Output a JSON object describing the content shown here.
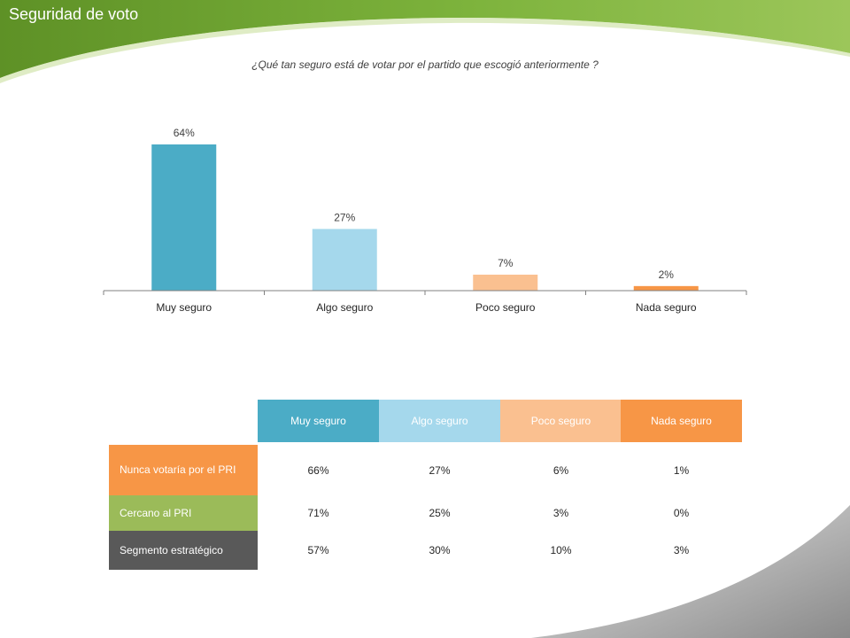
{
  "slide": {
    "title": "Seguridad  de voto",
    "question": "¿Qué tan seguro está de votar por el partido que escogió anteriormente ?"
  },
  "colors": {
    "green_dark": "#6a9a2a",
    "green_light": "#9cc65a",
    "muy_seguro": "#4bacc6",
    "algo_seguro": "#a5d8ec",
    "poco_seguro": "#fac090",
    "nada_seguro": "#f79646",
    "row_orange": "#f79646",
    "row_green": "#9bbb59",
    "row_dark": "#595959"
  },
  "chart_data": {
    "type": "bar",
    "categories": [
      "Muy seguro",
      "Algo seguro",
      "Poco seguro",
      "Nada seguro"
    ],
    "values": [
      64,
      27,
      7,
      2
    ],
    "data_labels": [
      "64%",
      "27%",
      "7%",
      "2%"
    ],
    "colors": [
      "#4bacc6",
      "#a5d8ec",
      "#fac090",
      "#f79646"
    ],
    "title": "",
    "xlabel": "",
    "ylabel": "",
    "ylim": [
      0,
      64
    ],
    "grid": false,
    "legend": "none"
  },
  "table": {
    "columns": [
      "Muy seguro",
      "Algo seguro",
      "Poco seguro",
      "Nada seguro"
    ],
    "rows": [
      {
        "label": "Nunca votaría por el PRI",
        "values": [
          "66%",
          "27%",
          "6%",
          "1%"
        ]
      },
      {
        "label": "Cercano al PRI",
        "values": [
          "71%",
          "25%",
          "3%",
          "0%"
        ]
      },
      {
        "label": "Segmento estratégico",
        "values": [
          "57%",
          "30%",
          "10%",
          "3%"
        ]
      }
    ]
  }
}
